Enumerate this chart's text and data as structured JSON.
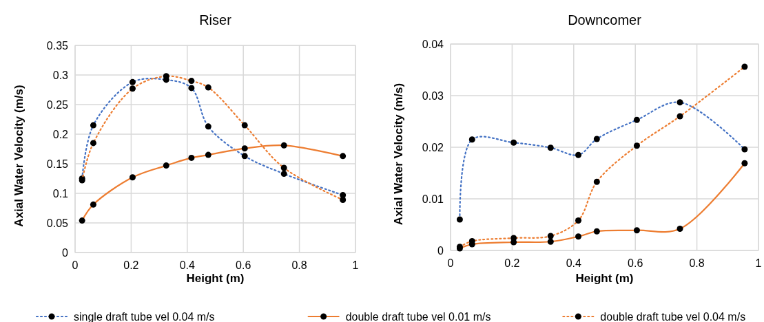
{
  "chart_data": [
    {
      "type": "line",
      "title": "Riser",
      "xlabel": "Height (m)",
      "ylabel": "Axial Water Velocity (m/s)",
      "xlim": [
        0,
        1
      ],
      "xticks": [
        0,
        0.2,
        0.4,
        0.6,
        0.8,
        1
      ],
      "ylim": [
        0,
        0.35
      ],
      "yticks": [
        0,
        0.05,
        0.1,
        0.15,
        0.2,
        0.25,
        0.3,
        0.35
      ],
      "grid": true,
      "legend": "bottom",
      "marker": "circle",
      "x": [
        0.025,
        0.065,
        0.205,
        0.325,
        0.415,
        0.475,
        0.605,
        0.745,
        0.955
      ],
      "series": [
        {
          "name": "single draft tube vel 0.04 m/s",
          "color": "#4472c4",
          "line_style": "dotted",
          "values": [
            0.125,
            0.215,
            0.288,
            0.292,
            0.278,
            0.213,
            0.163,
            0.133,
            0.097
          ]
        },
        {
          "name": "double draft tube vel 0.01 m/s",
          "color": "#ed7d31",
          "line_style": "solid",
          "values": [
            0.054,
            0.081,
            0.127,
            0.147,
            0.16,
            0.165,
            0.176,
            0.181,
            0.163
          ]
        },
        {
          "name": "double draft tube vel 0.04 m/s",
          "color": "#ed7d31",
          "line_style": "dotted",
          "values": [
            0.122,
            0.185,
            0.277,
            0.298,
            0.29,
            0.279,
            0.215,
            0.143,
            0.089
          ]
        }
      ]
    },
    {
      "type": "line",
      "title": "Downcomer",
      "xlabel": "Height (m)",
      "ylabel": "Axial Water Velocity (m/s)",
      "xlim": [
        0,
        1
      ],
      "xticks": [
        0,
        0.2,
        0.4,
        0.6,
        0.8,
        1
      ],
      "ylim": [
        0,
        0.04
      ],
      "yticks": [
        0,
        0.01,
        0.02,
        0.03,
        0.04
      ],
      "grid": true,
      "marker": "circle",
      "x": [
        0.03,
        0.07,
        0.205,
        0.325,
        0.415,
        0.475,
        0.605,
        0.745,
        0.955
      ],
      "series": [
        {
          "color": "#4472c4",
          "line_style": "dotted",
          "values": [
            0.006,
            0.0215,
            0.0209,
            0.0199,
            0.0185,
            0.0216,
            0.0253,
            0.0287,
            0.0196
          ]
        },
        {
          "color": "#ed7d31",
          "line_style": "solid",
          "values": [
            0.0004,
            0.0012,
            0.0016,
            0.0017,
            0.0027,
            0.0037,
            0.0039,
            0.0042,
            0.0169
          ]
        },
        {
          "color": "#ed7d31",
          "line_style": "dotted",
          "values": [
            0.0007,
            0.0018,
            0.0024,
            0.0028,
            0.0058,
            0.0133,
            0.0203,
            0.026,
            0.0356
          ]
        }
      ]
    }
  ]
}
